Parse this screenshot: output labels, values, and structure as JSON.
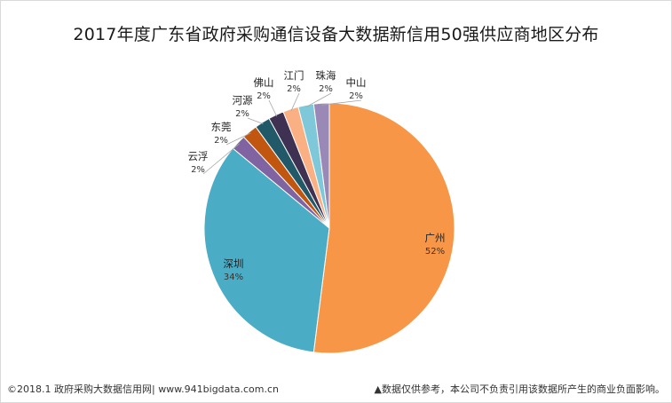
{
  "chart_data": {
    "type": "pie",
    "title": "2017年度广东省政府采购通信设备大数据新信用50强供应商地区分布",
    "slices": [
      {
        "name": "广州",
        "value": 52,
        "label": "52%",
        "color": "#F79646"
      },
      {
        "name": "深圳",
        "value": 34,
        "label": "34%",
        "color": "#4BACC6"
      },
      {
        "name": "云浮",
        "value": 2,
        "label": "2%",
        "color": "#8064A2"
      },
      {
        "name": "东莞",
        "value": 2,
        "label": "2%",
        "color": "#C0560F"
      },
      {
        "name": "河源",
        "value": 2,
        "label": "2%",
        "color": "#215968"
      },
      {
        "name": "佛山",
        "value": 2,
        "label": "2%",
        "color": "#3F3151"
      },
      {
        "name": "江门",
        "value": 2,
        "label": "2%",
        "color": "#FAB083"
      },
      {
        "name": "珠海",
        "value": 2,
        "label": "2%",
        "color": "#7FC8D9"
      },
      {
        "name": "中山",
        "value": 2,
        "label": "2%",
        "color": "#9A88B6"
      }
    ]
  },
  "footer": {
    "source": "©2018.1 政府采购大数据信用网| www.941bigdata.com.cn",
    "disclaimer": "▲数据仅供参考，本公司不负责引用该数据所产生的商业负面影响。"
  }
}
